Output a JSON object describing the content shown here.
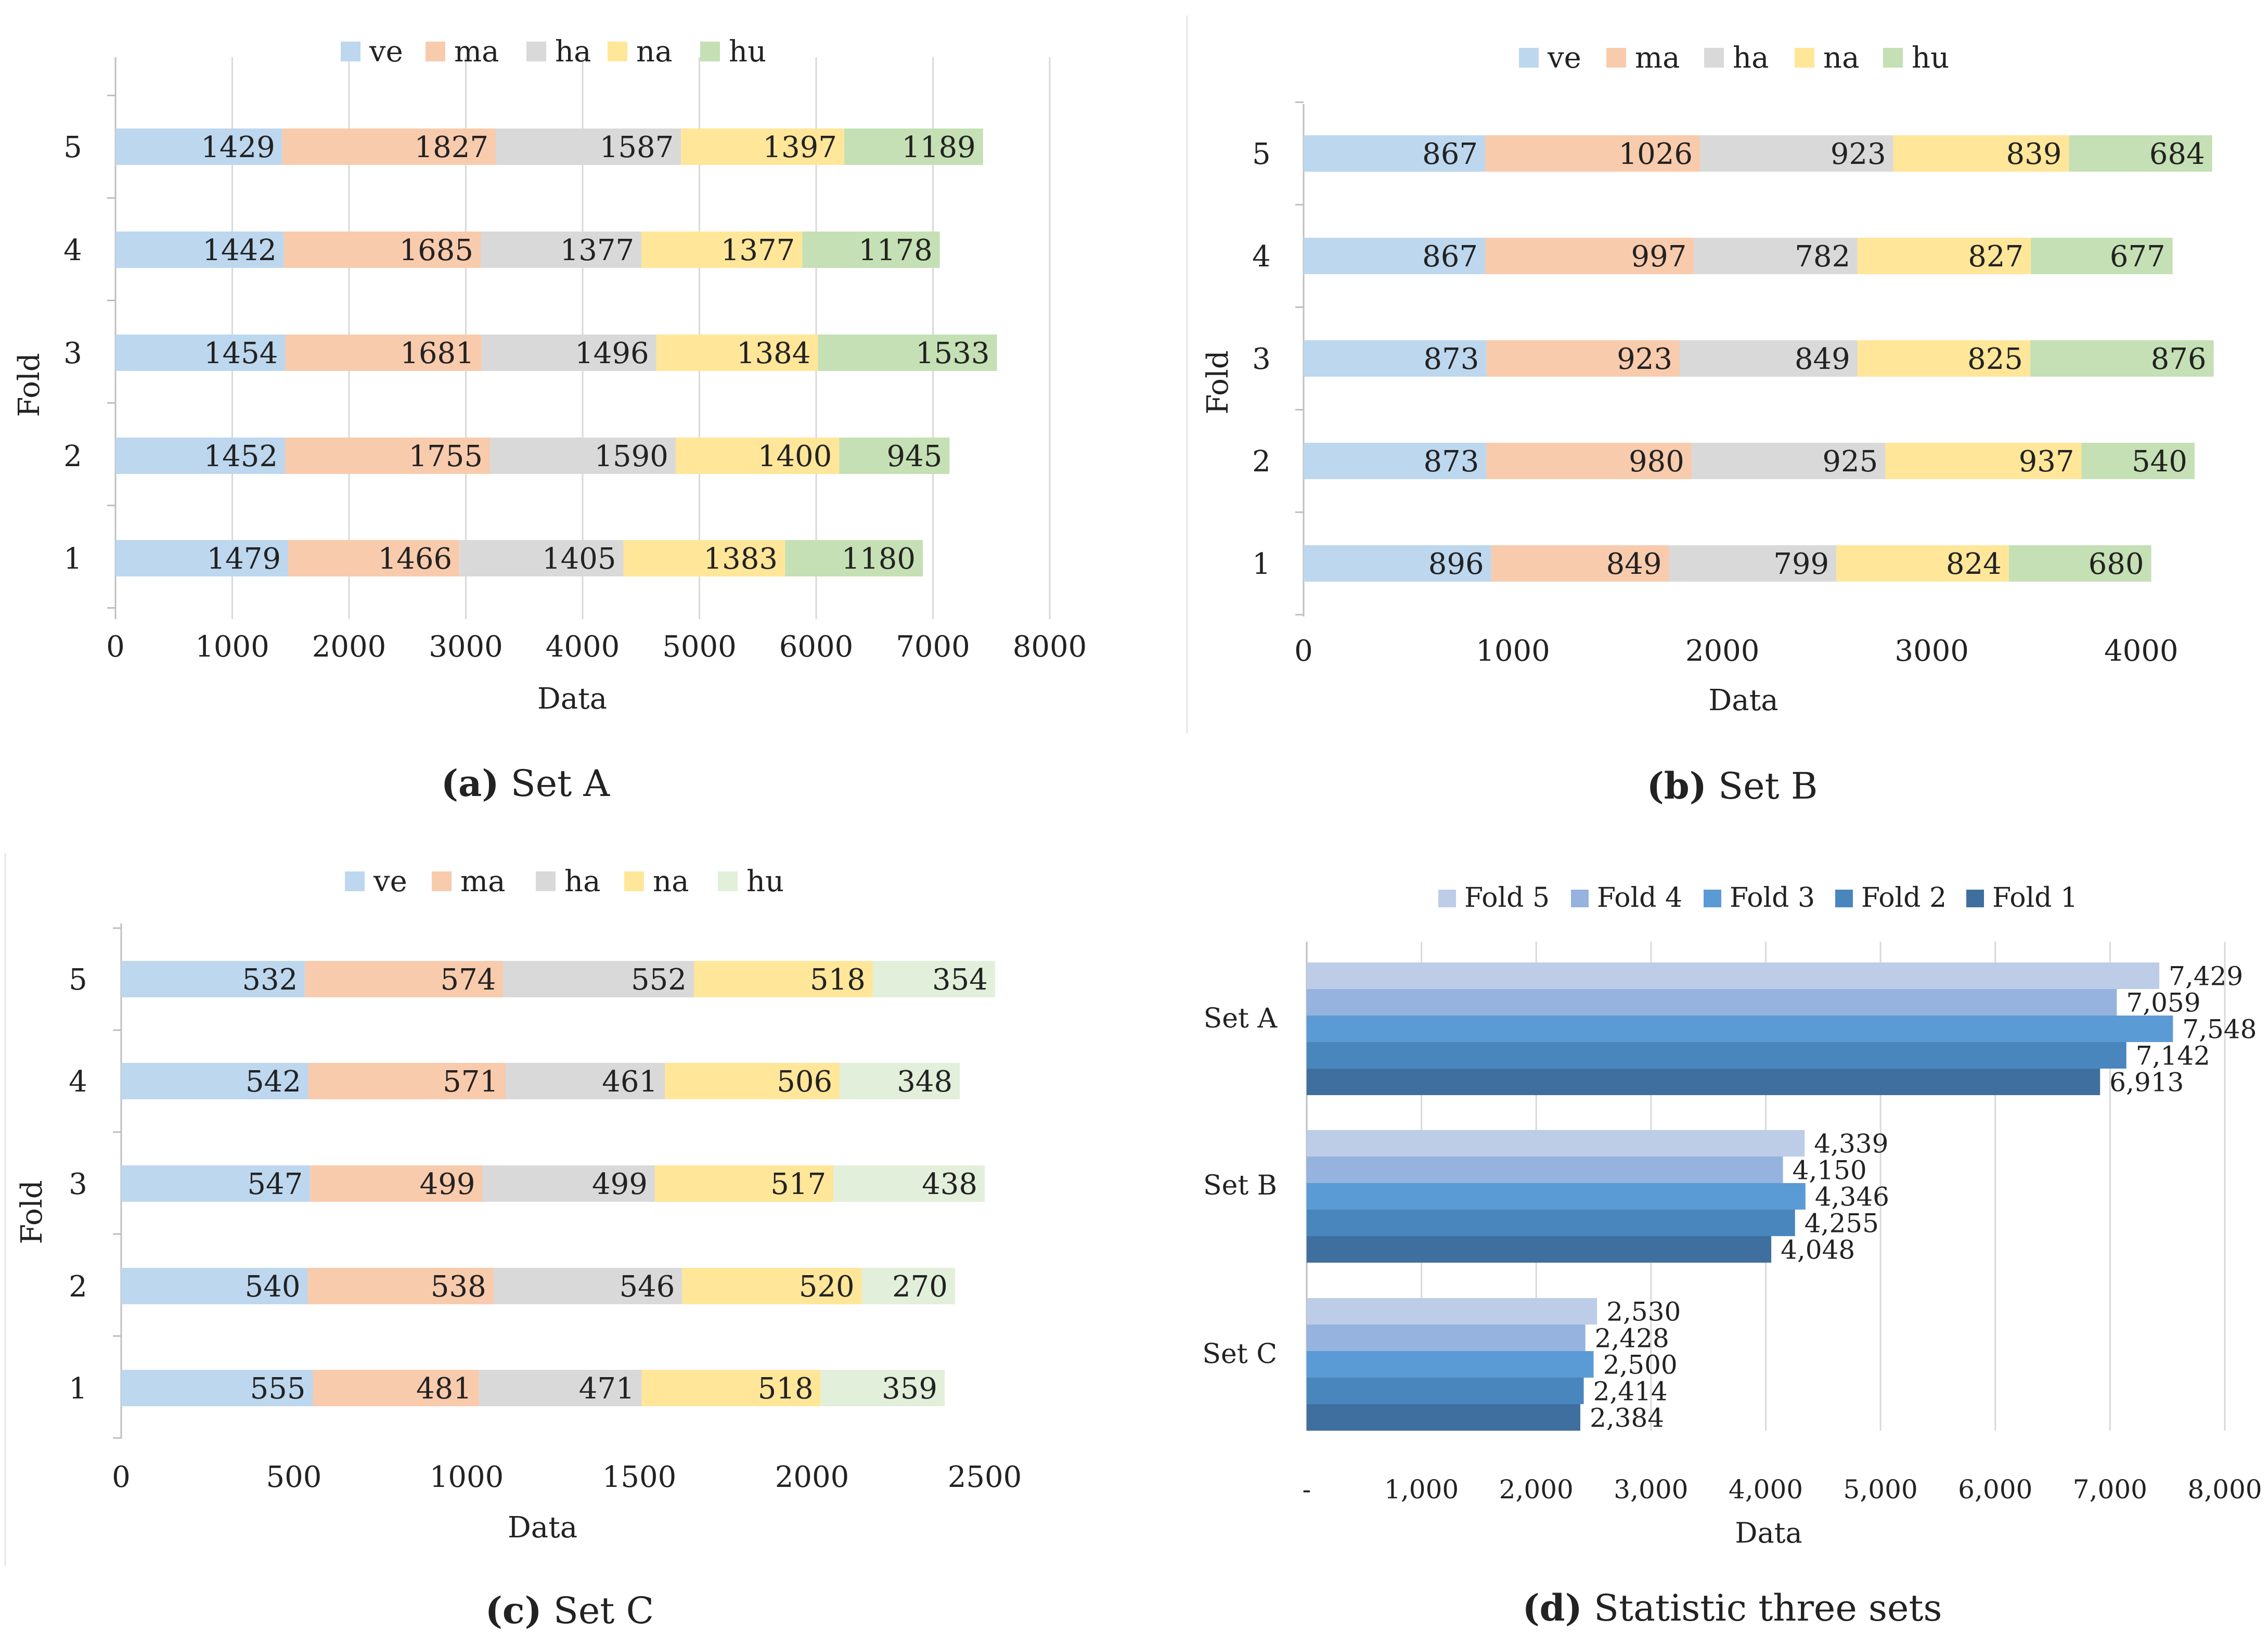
{
  "colors": {
    "ve": "#bdd7ee",
    "ma": "#f8cbad",
    "ha": "#d9d9d9",
    "na": "#ffe699",
    "hu": "#c5e0b4",
    "hu_light": "#e2efda",
    "fold5": "#bdcde8",
    "fold4": "#95b3de",
    "fold3": "#5b9bd5",
    "fold2": "#4a86be",
    "fold1": "#3f6f9f",
    "axis": "#bfbfbf",
    "text": "#222222"
  },
  "chart_data": [
    {
      "type": "bar",
      "orientation": "horizontal",
      "stacked": true,
      "caption_label": "(a)",
      "caption_text": "Set A",
      "xlabel": "Data",
      "ylabel": "Fold",
      "xlim": [
        0,
        8000
      ],
      "xticks": [
        "0",
        "1000",
        "2000",
        "3000",
        "4000",
        "5000",
        "6000",
        "7000",
        "8000"
      ],
      "xtick_values": [
        0,
        1000,
        2000,
        3000,
        4000,
        5000,
        6000,
        7000,
        8000
      ],
      "gridlines": true,
      "legend_position": "top",
      "categories": [
        "1",
        "2",
        "3",
        "4",
        "5"
      ],
      "series": [
        {
          "name": "ve",
          "color_key": "ve",
          "values": [
            1479,
            1452,
            1454,
            1442,
            1429
          ]
        },
        {
          "name": "ma",
          "color_key": "ma",
          "values": [
            1466,
            1755,
            1681,
            1685,
            1827
          ]
        },
        {
          "name": "ha",
          "color_key": "ha",
          "values": [
            1405,
            1590,
            1496,
            1377,
            1587
          ]
        },
        {
          "name": "na",
          "color_key": "na",
          "values": [
            1383,
            1400,
            1384,
            1377,
            1397
          ]
        },
        {
          "name": "hu",
          "color_key": "hu",
          "values": [
            1180,
            945,
            1533,
            1178,
            1189
          ]
        }
      ]
    },
    {
      "type": "bar",
      "orientation": "horizontal",
      "stacked": true,
      "caption_label": "(b)",
      "caption_text": "Set B",
      "xlabel": "Data",
      "ylabel": "Fold",
      "xlim": [
        0,
        4300
      ],
      "xticks": [
        "0",
        "1000",
        "2000",
        "3000",
        "4000"
      ],
      "xtick_values": [
        0,
        1000,
        2000,
        3000,
        4000
      ],
      "gridlines": false,
      "legend_position": "top",
      "categories": [
        "1",
        "2",
        "3",
        "4",
        "5"
      ],
      "series": [
        {
          "name": "ve",
          "color_key": "ve",
          "values": [
            896,
            873,
            873,
            867,
            867
          ]
        },
        {
          "name": "ma",
          "color_key": "ma",
          "values": [
            849,
            980,
            923,
            997,
            1026
          ]
        },
        {
          "name": "ha",
          "color_key": "ha",
          "values": [
            799,
            925,
            849,
            782,
            923
          ]
        },
        {
          "name": "na",
          "color_key": "na",
          "values": [
            824,
            937,
            825,
            827,
            839
          ]
        },
        {
          "name": "hu",
          "color_key": "hu",
          "values": [
            680,
            540,
            876,
            677,
            684
          ]
        }
      ]
    },
    {
      "type": "bar",
      "orientation": "horizontal",
      "stacked": true,
      "caption_label": "(c)",
      "caption_text": "Set C",
      "xlabel": "Data",
      "ylabel": "Fold",
      "xlim": [
        0,
        2500
      ],
      "xticks": [
        "0",
        "500",
        "1000",
        "1500",
        "2000",
        "2500"
      ],
      "xtick_values": [
        0,
        500,
        1000,
        1500,
        2000,
        2500
      ],
      "gridlines": false,
      "legend_position": "top",
      "categories": [
        "1",
        "2",
        "3",
        "4",
        "5"
      ],
      "series": [
        {
          "name": "ve",
          "color_key": "ve",
          "values": [
            555,
            540,
            547,
            542,
            532
          ]
        },
        {
          "name": "ma",
          "color_key": "ma",
          "values": [
            481,
            538,
            499,
            571,
            574
          ]
        },
        {
          "name": "ha",
          "color_key": "ha",
          "values": [
            471,
            546,
            499,
            461,
            552
          ]
        },
        {
          "name": "na",
          "color_key": "na",
          "values": [
            518,
            520,
            517,
            506,
            518
          ]
        },
        {
          "name": "hu",
          "color_key": "hu_light",
          "values": [
            359,
            270,
            438,
            348,
            354
          ]
        }
      ]
    },
    {
      "type": "bar",
      "orientation": "horizontal",
      "stacked": false,
      "caption_label": "(d)",
      "caption_text": "Statistic three sets",
      "xlabel": "Data",
      "ylabel": "",
      "xlim": [
        0,
        8000
      ],
      "xticks": [
        "-",
        "1,000",
        "2,000",
        "3,000",
        "4,000",
        "5,000",
        "6,000",
        "7,000",
        "8,000"
      ],
      "xtick_values": [
        0,
        1000,
        2000,
        3000,
        4000,
        5000,
        6000,
        7000,
        8000
      ],
      "gridlines": true,
      "legend_position": "top",
      "categories": [
        "Set A",
        "Set B",
        "Set C"
      ],
      "series": [
        {
          "name": "Fold 5",
          "color_key": "fold5",
          "values": [
            7429,
            4339,
            2530
          ],
          "labels": [
            "7,429",
            "4,339",
            "2,530"
          ]
        },
        {
          "name": "Fold 4",
          "color_key": "fold4",
          "values": [
            7059,
            4150,
            2428
          ],
          "labels": [
            "7,059",
            "4,150",
            "2,428"
          ]
        },
        {
          "name": "Fold 3",
          "color_key": "fold3",
          "values": [
            7548,
            4346,
            2500
          ],
          "labels": [
            "7,548",
            "4,346",
            "2,500"
          ]
        },
        {
          "name": "Fold 2",
          "color_key": "fold2",
          "values": [
            7142,
            4255,
            2414
          ],
          "labels": [
            "7,142",
            "4,255",
            "2,414"
          ]
        },
        {
          "name": "Fold 1",
          "color_key": "fold1",
          "values": [
            6913,
            4048,
            2384
          ],
          "labels": [
            "6,913",
            "4,048",
            "2,384"
          ]
        }
      ]
    }
  ]
}
